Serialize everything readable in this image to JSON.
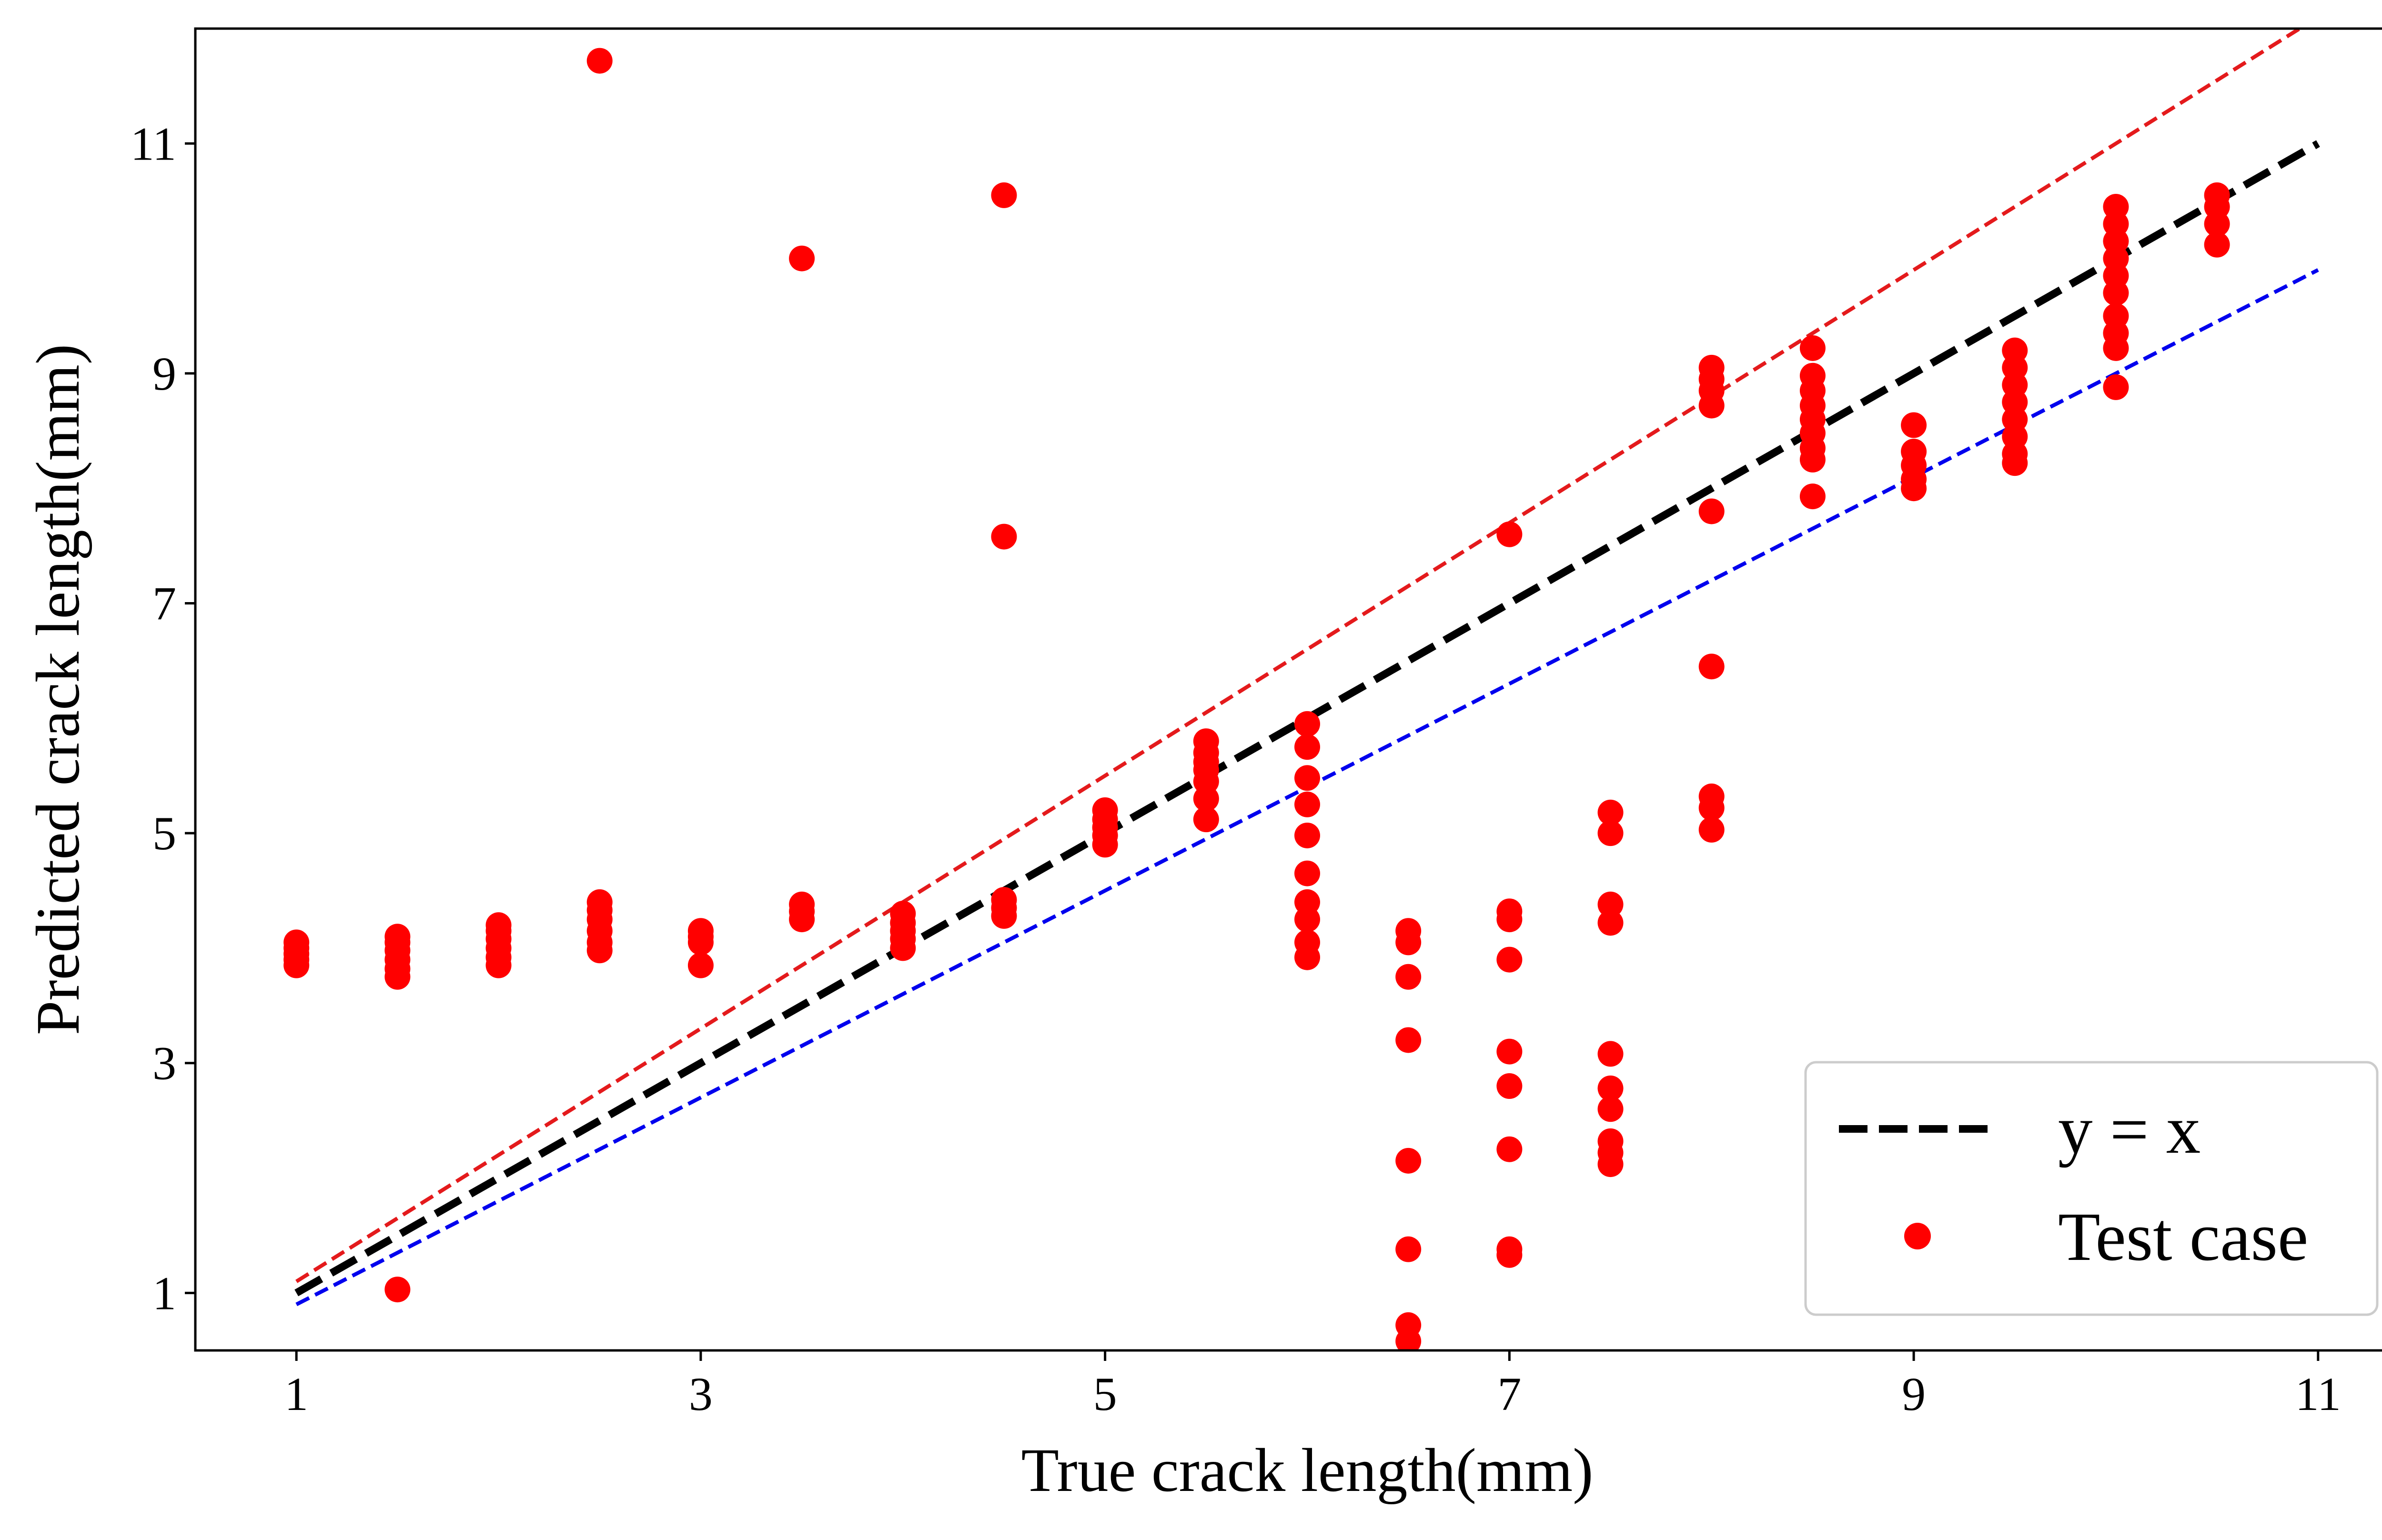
{
  "chart_data": {
    "type": "scatter",
    "title": "",
    "xlabel": "True crack length(mm)",
    "ylabel": "Predicted crack length(mm)",
    "xlim": [
      0.5,
      11.5
    ],
    "ylim": [
      0.5,
      12.0
    ],
    "x_ticks": [
      1,
      3,
      5,
      7,
      9,
      11
    ],
    "y_ticks": [
      1,
      3,
      5,
      7,
      9,
      11
    ],
    "x_tick_labels": [
      "1",
      "3",
      "5",
      "7",
      "9",
      "11"
    ],
    "y_tick_labels": [
      "1",
      "3",
      "5",
      "7",
      "9",
      "11"
    ],
    "grid": false,
    "legend_position": "lower-right",
    "lines": [
      {
        "name": "y = x",
        "slope": 1.0,
        "x_range": [
          1,
          11
        ],
        "color": "#000000",
        "style": "dashed",
        "in_legend": true
      },
      {
        "name": "",
        "slope": 1.1,
        "x_range": [
          1,
          11
        ],
        "color": "#e41a1c",
        "style": "dashed",
        "in_legend": false
      },
      {
        "name": "",
        "slope": 0.9,
        "x_range": [
          1,
          11
        ],
        "color": "#0000ee",
        "style": "dashed",
        "in_legend": false
      }
    ],
    "series": [
      {
        "name": "Test case",
        "color": "#ff0000",
        "points": [
          [
            1,
            3.85
          ],
          [
            1,
            3.9
          ],
          [
            1,
            3.95
          ],
          [
            1,
            4.0
          ],
          [
            1,
            4.05
          ],
          [
            1.5,
            1.03
          ],
          [
            1.5,
            3.75
          ],
          [
            1.5,
            3.82
          ],
          [
            1.5,
            3.9
          ],
          [
            1.5,
            3.98
          ],
          [
            1.5,
            4.05
          ],
          [
            1.5,
            4.1
          ],
          [
            2,
            3.85
          ],
          [
            2,
            3.92
          ],
          [
            2,
            4.0
          ],
          [
            2,
            4.08
          ],
          [
            2,
            4.15
          ],
          [
            2,
            4.2
          ],
          [
            2.5,
            11.72
          ],
          [
            2.5,
            3.98
          ],
          [
            2.5,
            4.05
          ],
          [
            2.5,
            4.15
          ],
          [
            2.5,
            4.25
          ],
          [
            2.5,
            4.33
          ],
          [
            2.5,
            4.4
          ],
          [
            3,
            3.85
          ],
          [
            3,
            4.05
          ],
          [
            3,
            4.1
          ],
          [
            3,
            4.15
          ],
          [
            3.5,
            10.0
          ],
          [
            3.5,
            4.25
          ],
          [
            3.5,
            4.32
          ],
          [
            3.5,
            4.38
          ],
          [
            4,
            4.0
          ],
          [
            4,
            4.08
          ],
          [
            4,
            4.15
          ],
          [
            4,
            4.22
          ],
          [
            4,
            4.3
          ],
          [
            4.5,
            10.55
          ],
          [
            4.5,
            7.58
          ],
          [
            4.5,
            4.28
          ],
          [
            4.5,
            4.35
          ],
          [
            4.5,
            4.42
          ],
          [
            5,
            4.9
          ],
          [
            5,
            4.98
          ],
          [
            5,
            5.05
          ],
          [
            5,
            5.12
          ],
          [
            5,
            5.2
          ],
          [
            5.5,
            5.12
          ],
          [
            5.5,
            5.3
          ],
          [
            5.5,
            5.45
          ],
          [
            5.5,
            5.55
          ],
          [
            5.5,
            5.62
          ],
          [
            5.5,
            5.7
          ],
          [
            5.5,
            5.8
          ],
          [
            6,
            5.95
          ],
          [
            6,
            5.75
          ],
          [
            6,
            5.48
          ],
          [
            6,
            5.25
          ],
          [
            6,
            4.98
          ],
          [
            6,
            4.65
          ],
          [
            6,
            4.4
          ],
          [
            6,
            4.25
          ],
          [
            6,
            4.05
          ],
          [
            6,
            3.92
          ],
          [
            6.5,
            4.15
          ],
          [
            6.5,
            4.05
          ],
          [
            6.5,
            3.75
          ],
          [
            6.5,
            3.2
          ],
          [
            6.5,
            2.15
          ],
          [
            6.5,
            1.38
          ],
          [
            6.5,
            0.72
          ],
          [
            6.5,
            0.58
          ],
          [
            7,
            7.6
          ],
          [
            7,
            4.32
          ],
          [
            7,
            4.25
          ],
          [
            7,
            3.9
          ],
          [
            7,
            3.1
          ],
          [
            7,
            2.8
          ],
          [
            7,
            2.25
          ],
          [
            7,
            1.38
          ],
          [
            7,
            1.33
          ],
          [
            7.5,
            5.18
          ],
          [
            7.5,
            5.0
          ],
          [
            7.5,
            4.38
          ],
          [
            7.5,
            4.22
          ],
          [
            7.5,
            3.08
          ],
          [
            7.5,
            2.78
          ],
          [
            7.5,
            2.6
          ],
          [
            7.5,
            2.32
          ],
          [
            7.5,
            2.22
          ],
          [
            7.5,
            2.12
          ],
          [
            8,
            9.05
          ],
          [
            8,
            8.95
          ],
          [
            8,
            8.85
          ],
          [
            8,
            8.72
          ],
          [
            8,
            7.8
          ],
          [
            8,
            6.45
          ],
          [
            8,
            5.32
          ],
          [
            8,
            5.22
          ],
          [
            8,
            5.03
          ],
          [
            8.5,
            9.22
          ],
          [
            8.5,
            8.98
          ],
          [
            8.5,
            8.85
          ],
          [
            8.5,
            8.72
          ],
          [
            8.5,
            8.6
          ],
          [
            8.5,
            8.48
          ],
          [
            8.5,
            8.35
          ],
          [
            8.5,
            8.25
          ],
          [
            8.5,
            7.93
          ],
          [
            9,
            8.55
          ],
          [
            9,
            8.32
          ],
          [
            9,
            8.2
          ],
          [
            9,
            8.08
          ],
          [
            9,
            8.0
          ],
          [
            9.5,
            9.2
          ],
          [
            9.5,
            9.05
          ],
          [
            9.5,
            8.9
          ],
          [
            9.5,
            8.75
          ],
          [
            9.5,
            8.6
          ],
          [
            9.5,
            8.45
          ],
          [
            9.5,
            8.3
          ],
          [
            9.5,
            8.22
          ],
          [
            10,
            10.45
          ],
          [
            10,
            10.3
          ],
          [
            10,
            10.15
          ],
          [
            10,
            10.0
          ],
          [
            10,
            9.85
          ],
          [
            10,
            9.7
          ],
          [
            10,
            9.5
          ],
          [
            10,
            9.35
          ],
          [
            10,
            9.22
          ],
          [
            10,
            8.88
          ],
          [
            10.5,
            10.55
          ],
          [
            10.5,
            10.45
          ],
          [
            10.5,
            10.3
          ],
          [
            10.5,
            10.12
          ]
        ]
      }
    ],
    "legend": {
      "entries": [
        {
          "label": "y = x",
          "symbol": "dashed-line",
          "color": "#000000"
        },
        {
          "label": "Test case",
          "symbol": "circle-marker",
          "color": "#ff0000"
        }
      ]
    }
  }
}
